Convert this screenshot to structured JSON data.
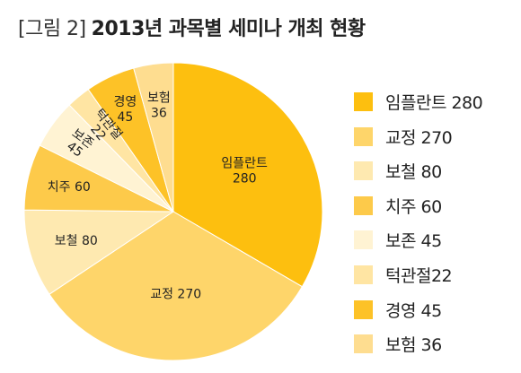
{
  "title": {
    "figure": "[그림 2]",
    "main": "2013년 과목별 세미나 개최 현황"
  },
  "chart_data": {
    "type": "pie",
    "categories": [
      "임플란트",
      "교정",
      "보철",
      "치주",
      "보존",
      "턱관절",
      "경영",
      "보험"
    ],
    "values": [
      280,
      270,
      80,
      60,
      45,
      22,
      45,
      36
    ],
    "colors": [
      "#FDBF0F",
      "#FED56A",
      "#FEE9B0",
      "#FDCA4A",
      "#FFF3D3",
      "#FFE5A3",
      "#FDC227",
      "#FEDD90"
    ],
    "labels": [
      "임플란트 280",
      "교정 270",
      "보철 80",
      "치주 60",
      "보존 45",
      "턱관절 22",
      "경영 45",
      "보험 36"
    ],
    "legend_labels": [
      "임플란트 280",
      "교정 270",
      "보철 80",
      "치주 60",
      "보존 45",
      "턱관절22",
      "경영 45",
      "보험 36"
    ],
    "start_angle_deg": 0,
    "direction": "clockwise",
    "legend_position": "right"
  }
}
